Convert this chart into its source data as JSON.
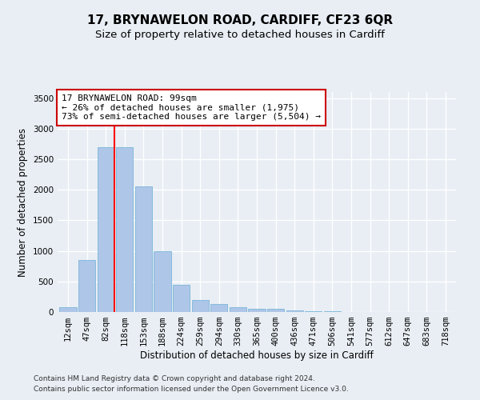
{
  "title": "17, BRYNAWELON ROAD, CARDIFF, CF23 6QR",
  "subtitle": "Size of property relative to detached houses in Cardiff",
  "xlabel": "Distribution of detached houses by size in Cardiff",
  "ylabel": "Number of detached properties",
  "footnote1": "Contains HM Land Registry data © Crown copyright and database right 2024.",
  "footnote2": "Contains public sector information licensed under the Open Government Licence v3.0.",
  "categories": [
    "12sqm",
    "47sqm",
    "82sqm",
    "118sqm",
    "153sqm",
    "188sqm",
    "224sqm",
    "259sqm",
    "294sqm",
    "330sqm",
    "365sqm",
    "400sqm",
    "436sqm",
    "471sqm",
    "506sqm",
    "541sqm",
    "577sqm",
    "612sqm",
    "647sqm",
    "683sqm",
    "718sqm"
  ],
  "bar_values": [
    75,
    850,
    2700,
    2700,
    2050,
    1000,
    450,
    200,
    130,
    75,
    55,
    50,
    25,
    10,
    10,
    5,
    5,
    2,
    2,
    1,
    1
  ],
  "bar_color": "#aec6e8",
  "bar_edgecolor": "#6aafd6",
  "bar_linewidth": 0.5,
  "redline_x": 2.45,
  "annotation_line1": "17 BRYNAWELON ROAD: 99sqm",
  "annotation_line2": "← 26% of detached houses are smaller (1,975)",
  "annotation_line3": "73% of semi-detached houses are larger (5,504) →",
  "annotation_box_color": "#ffffff",
  "annotation_box_edgecolor": "#cc0000",
  "ylim": [
    0,
    3600
  ],
  "yticks": [
    0,
    500,
    1000,
    1500,
    2000,
    2500,
    3000,
    3500
  ],
  "background_color": "#e8eef4",
  "grid_color": "#ffffff",
  "title_fontsize": 11,
  "subtitle_fontsize": 9.5,
  "axis_label_fontsize": 8.5,
  "tick_fontsize": 7.5,
  "annotation_fontsize": 8,
  "footnote_fontsize": 6.5
}
